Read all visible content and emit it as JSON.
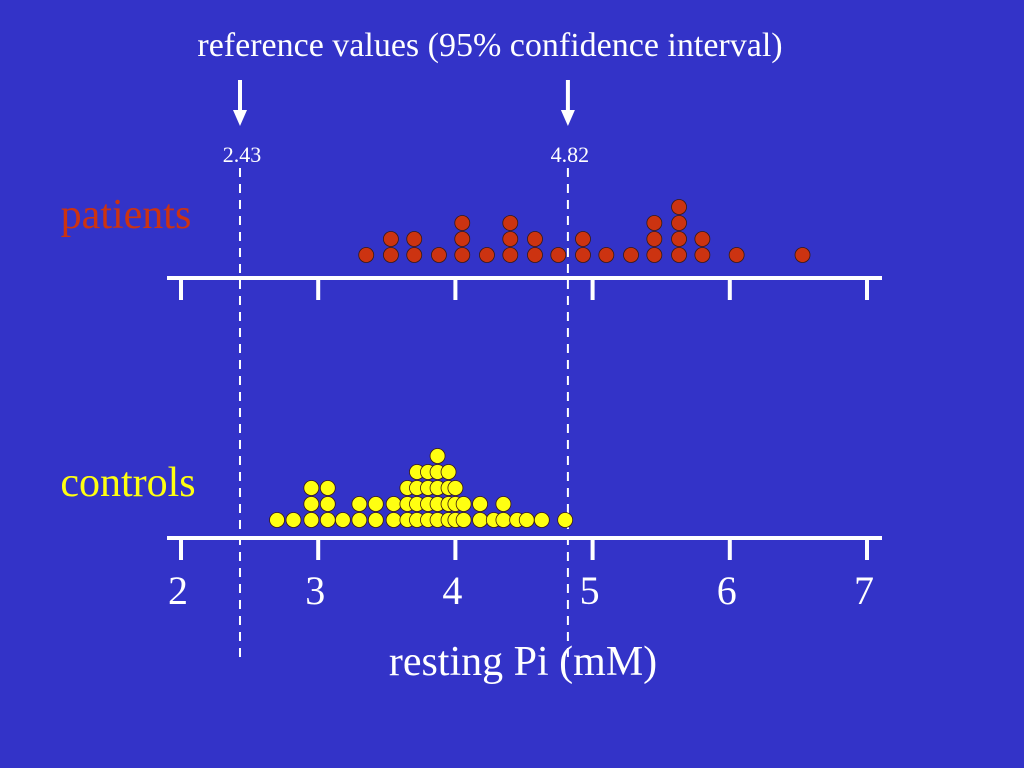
{
  "chart_data": {
    "type": "scatter",
    "title": "reference values (95% confidence interval)",
    "xlabel": "resting Pi (mM)",
    "ylabel": "",
    "xlim": [
      2,
      7
    ],
    "x_ticks": [
      "2",
      "3",
      "4",
      "5",
      "6",
      "7"
    ],
    "grid": false,
    "legend": "none",
    "reference_lines": [
      {
        "value": 2.43,
        "label": "2.43"
      },
      {
        "value": 4.82,
        "label": "4.82"
      }
    ],
    "series": [
      {
        "name": "patients",
        "color": "#cc3311",
        "stacks": [
          [
            3.35,
            1
          ],
          [
            3.53,
            2
          ],
          [
            3.7,
            2
          ],
          [
            3.88,
            1
          ],
          [
            4.05,
            3
          ],
          [
            4.23,
            1
          ],
          [
            4.4,
            3
          ],
          [
            4.58,
            2
          ],
          [
            4.75,
            1
          ],
          [
            4.93,
            2
          ],
          [
            5.1,
            1
          ],
          [
            5.28,
            1
          ],
          [
            5.45,
            3
          ],
          [
            5.63,
            4
          ],
          [
            5.8,
            2
          ],
          [
            6.05,
            1
          ],
          [
            6.53,
            1
          ]
        ]
      },
      {
        "name": "controls",
        "color": "#ffff11",
        "stacks": [
          [
            2.7,
            1
          ],
          [
            2.82,
            1
          ],
          [
            2.95,
            3
          ],
          [
            3.07,
            3
          ],
          [
            3.18,
            1
          ],
          [
            3.3,
            2
          ],
          [
            3.42,
            2
          ],
          [
            3.55,
            2
          ],
          [
            3.65,
            3
          ],
          [
            3.72,
            4
          ],
          [
            3.8,
            4
          ],
          [
            3.87,
            5
          ],
          [
            3.95,
            4
          ],
          [
            4.0,
            3
          ],
          [
            4.06,
            2
          ],
          [
            4.18,
            2
          ],
          [
            4.28,
            1
          ],
          [
            4.35,
            2
          ],
          [
            4.45,
            1
          ],
          [
            4.52,
            1
          ],
          [
            4.63,
            1
          ],
          [
            4.8,
            1
          ]
        ]
      }
    ]
  }
}
